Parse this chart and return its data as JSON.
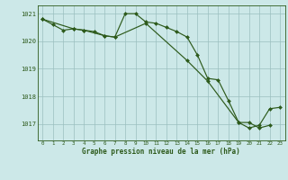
{
  "hours": [
    0,
    1,
    2,
    3,
    4,
    5,
    6,
    7,
    8,
    9,
    10,
    11,
    12,
    13,
    14,
    15,
    16,
    17,
    18,
    19,
    20,
    21,
    22,
    23
  ],
  "series1_x": [
    0,
    1,
    2,
    3,
    4,
    5,
    6,
    7,
    8,
    9,
    10,
    11,
    12,
    13,
    14,
    15,
    16,
    17,
    18,
    19,
    20,
    21,
    22
  ],
  "series1_y": [
    1020.8,
    1020.6,
    1020.4,
    1020.45,
    1020.4,
    1020.35,
    1020.2,
    1020.15,
    1021.0,
    1021.0,
    1020.7,
    1020.65,
    1020.5,
    1020.35,
    1020.15,
    1019.5,
    1018.65,
    1018.6,
    1017.85,
    1017.05,
    1017.05,
    1016.85,
    1016.95
  ],
  "series2_x": [
    0,
    3,
    4,
    6,
    7,
    10,
    14,
    16,
    19,
    20,
    21,
    22,
    23
  ],
  "series2_y": [
    1020.8,
    1020.45,
    1020.4,
    1020.2,
    1020.15,
    1020.65,
    1019.3,
    1018.55,
    1017.05,
    1016.85,
    1016.95,
    1017.55,
    1017.6
  ],
  "line_color": "#2d5a1b",
  "bg_color": "#cce8e8",
  "grid_color": "#9bbfbf",
  "ylabel_values": [
    1017,
    1018,
    1019,
    1020,
    1021
  ],
  "xlabel_label": "Graphe pression niveau de la mer (hPa)",
  "ylim": [
    1016.4,
    1021.3
  ],
  "xlim": [
    -0.5,
    23.5
  ],
  "figw": 3.2,
  "figh": 2.0,
  "dpi": 100
}
